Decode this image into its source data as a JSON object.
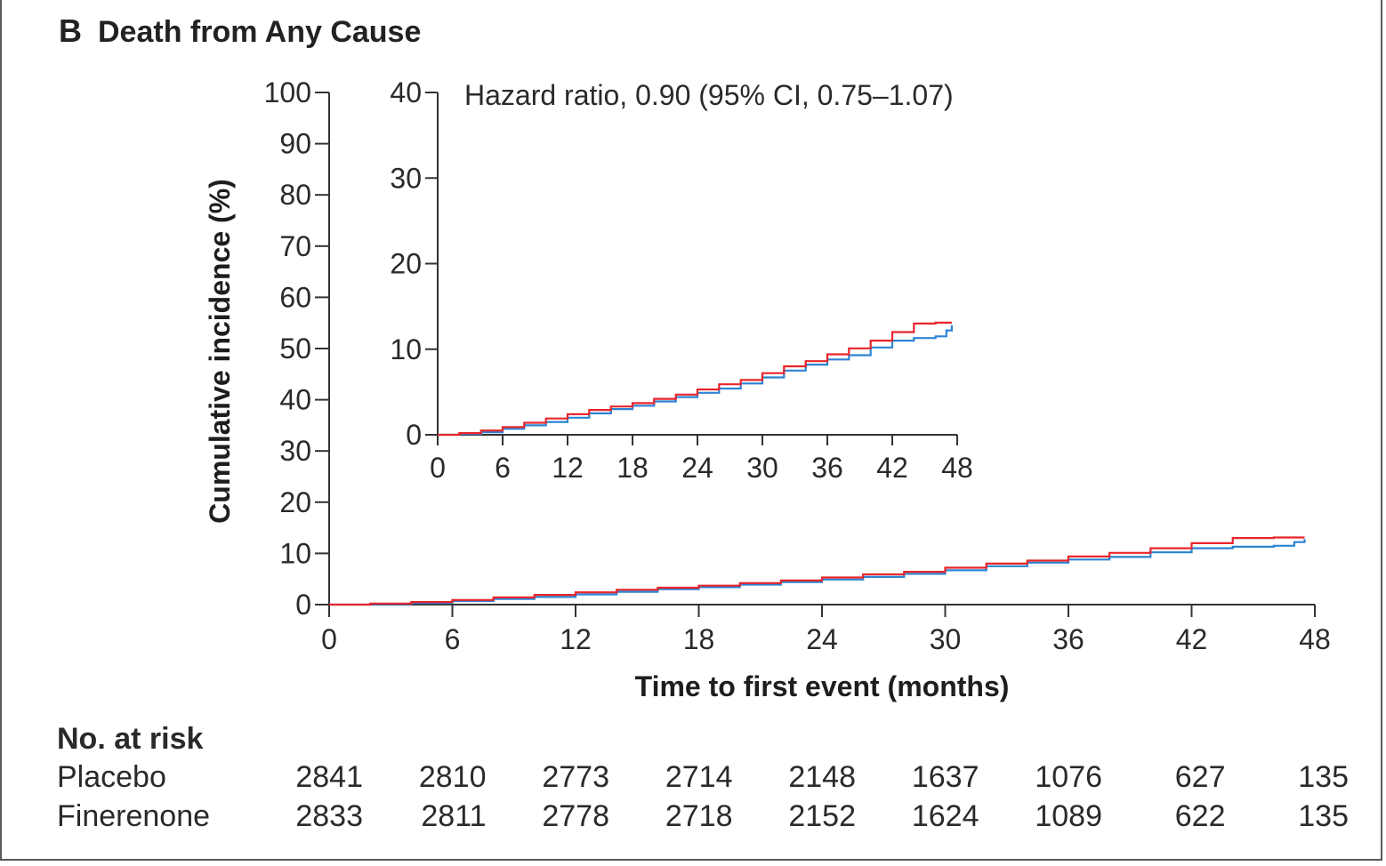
{
  "panel": {
    "letter": "B",
    "title": "Death from Any Cause"
  },
  "chart_data": {
    "type": "line",
    "title": "Death from Any Cause",
    "xlabel": "Time to first event (months)",
    "ylabel": "Cumulative incidence (%)",
    "xlim": [
      0,
      48
    ],
    "ylim": [
      0,
      100
    ],
    "xticks": [
      0,
      6,
      12,
      18,
      24,
      30,
      36,
      42,
      48
    ],
    "yticks": [
      0,
      10,
      20,
      30,
      40,
      50,
      60,
      70,
      80,
      90,
      100
    ],
    "colors": {
      "placebo": "#e8252b",
      "finerenone": "#2b84d4"
    },
    "series": [
      {
        "color": "#e8252b",
        "x": [
          0,
          2,
          4,
          6,
          8,
          10,
          12,
          14,
          16,
          18,
          20,
          22,
          24,
          26,
          28,
          30,
          32,
          34,
          36,
          38,
          40,
          42,
          44,
          46,
          47.5
        ],
        "y": [
          0,
          0.2,
          0.5,
          0.9,
          1.4,
          1.9,
          2.4,
          2.9,
          3.3,
          3.7,
          4.2,
          4.7,
          5.3,
          5.9,
          6.4,
          7.2,
          8.0,
          8.6,
          9.4,
          10.1,
          11.0,
          12.0,
          13.0,
          13.1,
          13.1
        ]
      },
      {
        "color": "#2b84d4",
        "x": [
          0,
          2,
          4,
          6,
          8,
          10,
          12,
          14,
          16,
          18,
          20,
          22,
          24,
          26,
          28,
          30,
          32,
          34,
          36,
          38,
          40,
          42,
          44,
          46,
          47,
          47.5
        ],
        "y": [
          0,
          0.1,
          0.3,
          0.7,
          1.1,
          1.5,
          2.0,
          2.5,
          3.0,
          3.4,
          3.9,
          4.4,
          4.9,
          5.4,
          6.0,
          6.7,
          7.5,
          8.2,
          8.8,
          9.3,
          10.2,
          11.0,
          11.3,
          11.5,
          12.2,
          12.8
        ]
      }
    ],
    "inset": {
      "ylim": [
        0,
        40
      ],
      "xlim": [
        0,
        48
      ],
      "yticks": [
        0,
        10,
        20,
        30,
        40
      ],
      "xticks": [
        0,
        6,
        12,
        18,
        24,
        30,
        36,
        42,
        48
      ],
      "annotation": "Hazard ratio, 0.90 (95% CI, 0.75–1.07)"
    }
  },
  "risk_table": {
    "title": "No. at risk",
    "rows": [
      {
        "label": "Placebo",
        "values": [
          "2841",
          "2810",
          "2773",
          "2714",
          "2148",
          "1637",
          "1076",
          "627",
          "135"
        ]
      },
      {
        "label": "Finerenone",
        "values": [
          "2833",
          "2811",
          "2778",
          "2718",
          "2152",
          "1624",
          "1089",
          "622",
          "135"
        ]
      }
    ]
  }
}
